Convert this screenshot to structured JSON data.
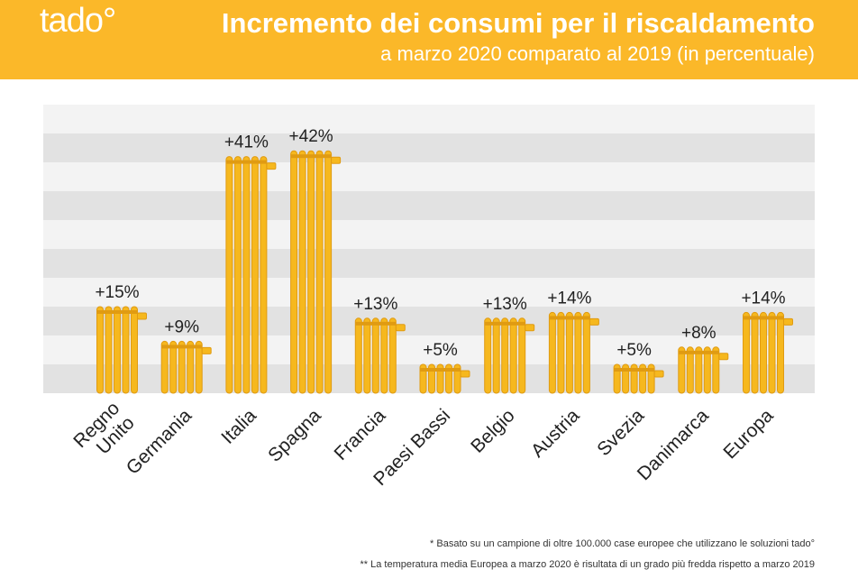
{
  "header": {
    "logo": "tado°",
    "title": "Incremento dei consumi per il riscaldamento",
    "subtitle": "a marzo 2020 comparato al 2019 (in percentuale)"
  },
  "colors": {
    "accent": "#fbb829",
    "bar": "#f6b81e",
    "bar_dark": "#e09b12",
    "stripe_dark": "#e2e2e2",
    "stripe_light": "#f3f3f3"
  },
  "chart_data": {
    "type": "bar",
    "title": "Incremento dei consumi per il riscaldamento",
    "subtitle": "a marzo 2020 comparato al 2019 (in percentuale)",
    "categories": [
      "Regno Unito",
      "Germania",
      "Italia",
      "Spagna",
      "Francia",
      "Paesi Bassi",
      "Belgio",
      "Austria",
      "Svezia",
      "Danimarca",
      "Europa"
    ],
    "category_lines": [
      [
        "Regno",
        "Unito"
      ],
      [
        "Germania"
      ],
      [
        "Italia"
      ],
      [
        "Spagna"
      ],
      [
        "Francia"
      ],
      [
        "Paesi Bassi"
      ],
      [
        "Belgio"
      ],
      [
        "Austria"
      ],
      [
        "Svezia"
      ],
      [
        "Danimarca"
      ],
      [
        "Europa"
      ]
    ],
    "values": [
      15,
      9,
      41,
      42,
      13,
      5,
      13,
      14,
      5,
      8,
      14
    ],
    "data_labels": [
      "+15%",
      "+9%",
      "+41%",
      "+42%",
      "+13%",
      "+5%",
      "+13%",
      "+14%",
      "+5%",
      "+8%",
      "+14%"
    ],
    "ylim": [
      0,
      50
    ],
    "grid": "horizontal bands",
    "bar_style": "radiator"
  },
  "footnotes": [
    "* Basato su un campione di oltre 100.000 case europee che utilizzano le soluzioni tado°",
    "** La temperatura media Europea a marzo 2020 è risultata di un grado più fredda rispetto a marzo 2019"
  ]
}
